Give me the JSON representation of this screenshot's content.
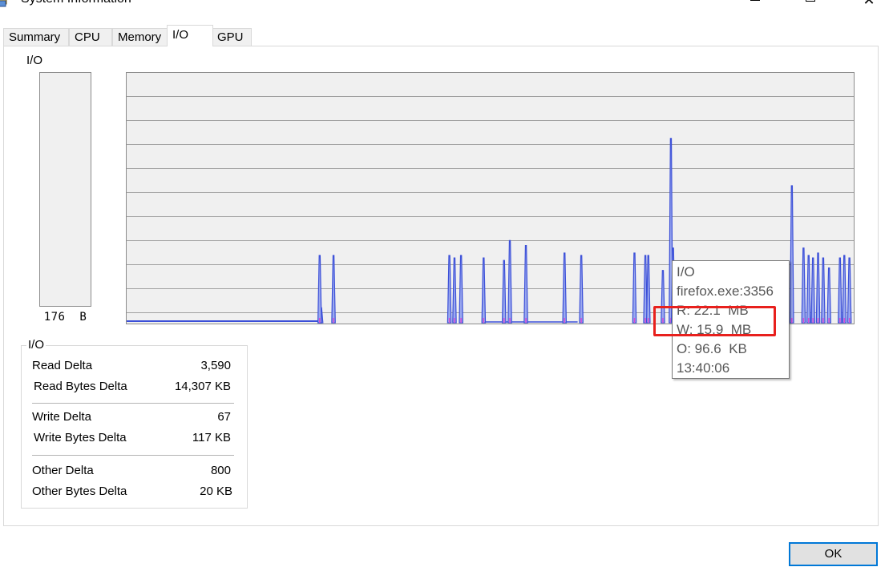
{
  "window": {
    "title": "System Information",
    "close_glyph": "✕"
  },
  "tabs": [
    {
      "label": "Summary",
      "active": false
    },
    {
      "label": "CPU",
      "active": false
    },
    {
      "label": "Memory",
      "active": false
    },
    {
      "label": "I/O",
      "active": true
    },
    {
      "label": "GPU",
      "active": false
    }
  ],
  "io_panel": {
    "label": "I/O",
    "meter_value": "176  B"
  },
  "tooltip": {
    "lines": [
      "I/O",
      "firefox.exe:3356",
      "R: 22.1  MB",
      "W: 15.9  MB",
      "O: 96.6  KB",
      "13:40:06"
    ]
  },
  "stats_group": {
    "label": "I/O",
    "rows": [
      {
        "label": "Read Delta",
        "value": "3,590"
      },
      {
        "label": "Read Bytes Delta",
        "value": "14,307 KB"
      },
      {
        "label": "Write Delta",
        "value": "67"
      },
      {
        "label": "Write Bytes Delta",
        "value": "117 KB"
      },
      {
        "label": "Other Delta",
        "value": "800"
      },
      {
        "label": "Other Bytes Delta",
        "value": "20 KB"
      }
    ]
  },
  "buttons": {
    "ok_label": "OK"
  },
  "colors": {
    "read_series": "#3b4fd8",
    "read_fill": "#9aa8ee",
    "other_series": "#d64bd6",
    "grid": "#a0a0a0",
    "highlight": "#e8201d"
  },
  "chart_data": {
    "type": "area",
    "ylim": [
      0,
      1
    ],
    "grid": true,
    "spikes": [
      {
        "x": 0.268,
        "y": 0.06
      },
      {
        "x": 0.266,
        "y": 0.055
      },
      {
        "x": 0.266,
        "y": 0.27
      },
      {
        "x": 0.285,
        "y": 0.27
      },
      {
        "x": 0.444,
        "y": 0.27
      },
      {
        "x": 0.451,
        "y": 0.26
      },
      {
        "x": 0.46,
        "y": 0.27
      },
      {
        "x": 0.491,
        "y": 0.26
      },
      {
        "x": 0.519,
        "y": 0.25
      },
      {
        "x": 0.527,
        "y": 0.33
      },
      {
        "x": 0.549,
        "y": 0.31
      },
      {
        "x": 0.602,
        "y": 0.28
      },
      {
        "x": 0.625,
        "y": 0.27
      },
      {
        "x": 0.698,
        "y": 0.28
      },
      {
        "x": 0.713,
        "y": 0.27
      },
      {
        "x": 0.717,
        "y": 0.27
      },
      {
        "x": 0.737,
        "y": 0.21
      },
      {
        "x": 0.748,
        "y": 0.74
      },
      {
        "x": 0.751,
        "y": 0.3
      },
      {
        "x": 0.914,
        "y": 0.55
      },
      {
        "x": 0.93,
        "y": 0.3
      },
      {
        "x": 0.937,
        "y": 0.27
      },
      {
        "x": 0.943,
        "y": 0.26
      },
      {
        "x": 0.95,
        "y": 0.28
      },
      {
        "x": 0.957,
        "y": 0.26
      },
      {
        "x": 0.965,
        "y": 0.22
      },
      {
        "x": 0.98,
        "y": 0.26
      },
      {
        "x": 0.986,
        "y": 0.27
      },
      {
        "x": 0.993,
        "y": 0.26
      }
    ]
  }
}
